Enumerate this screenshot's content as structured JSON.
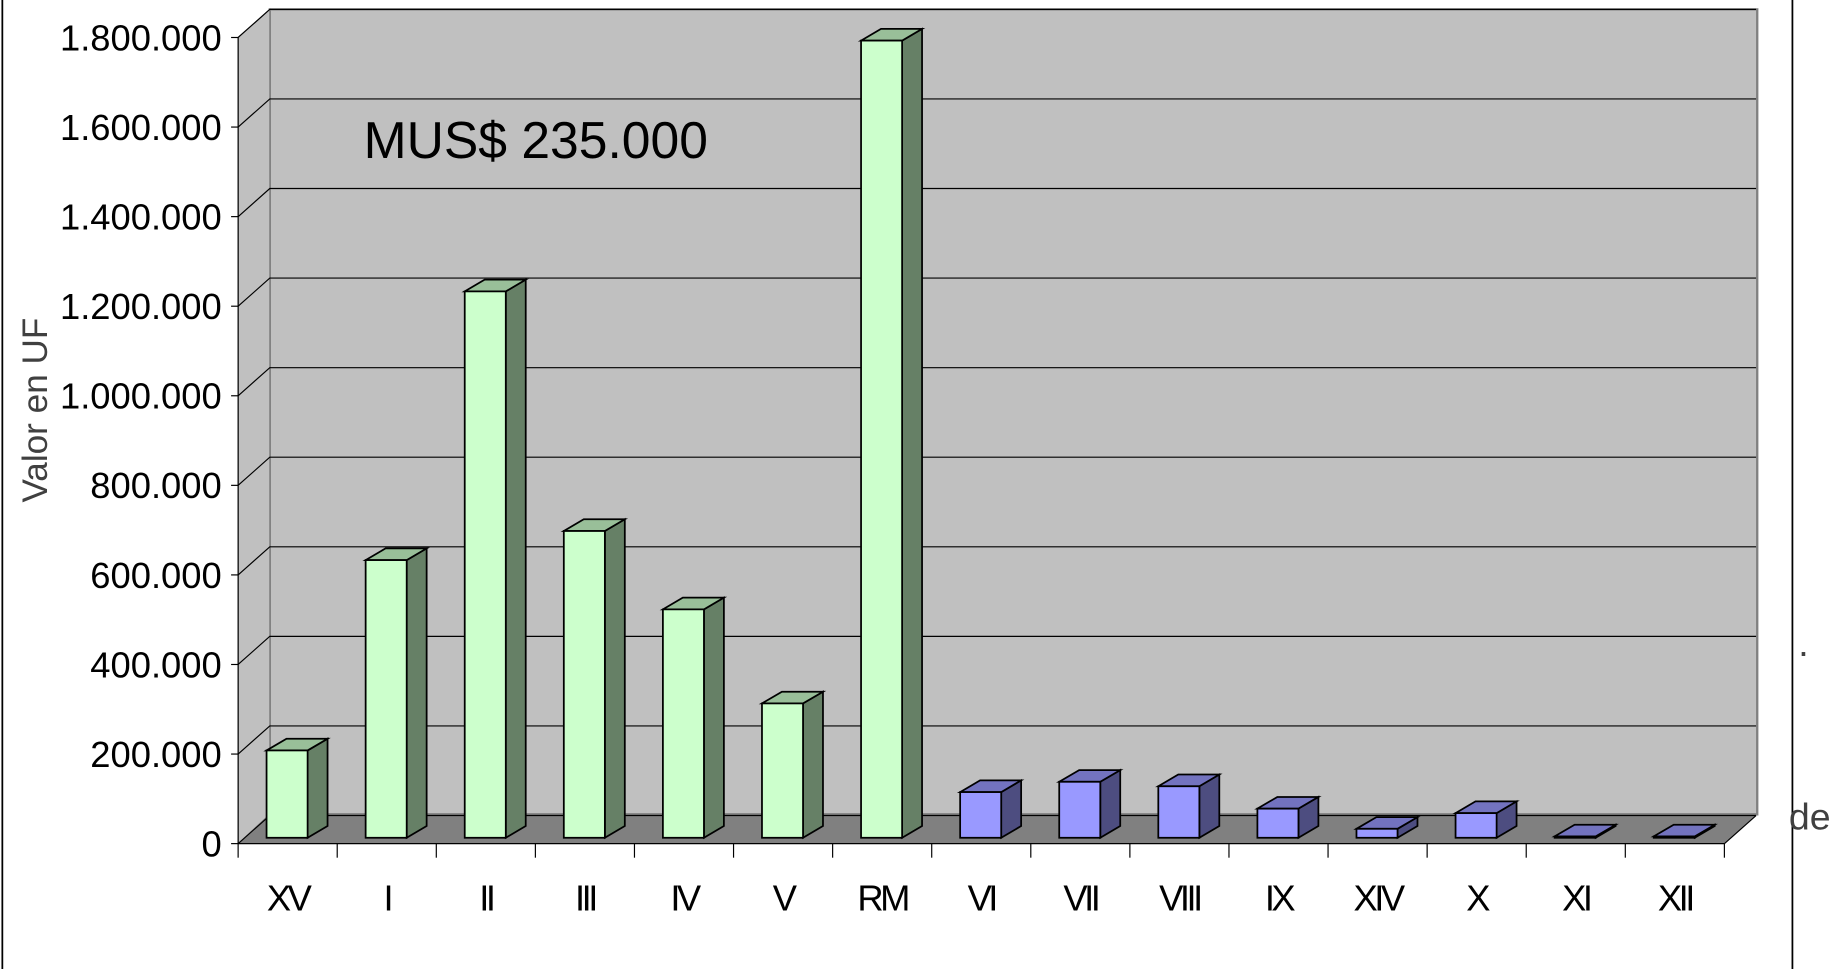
{
  "chart_data": {
    "type": "bar3d",
    "annotation": "MUS$ 235.000",
    "y_label": "Valor en UF",
    "categories": [
      "XV",
      "I",
      "II",
      "III",
      "IV",
      "V",
      "RM",
      "VI",
      "VII",
      "VIII",
      "IX",
      "XIV",
      "X",
      "XI",
      "XII"
    ],
    "values": [
      195000,
      620000,
      1220000,
      685000,
      510000,
      300000,
      1780000,
      102000,
      125000,
      115000,
      65000,
      20000,
      55000,
      3000,
      3000
    ],
    "colors": [
      "#ccffcc",
      "#ccffcc",
      "#ccffcc",
      "#ccffcc",
      "#ccffcc",
      "#ccffcc",
      "#ccffcc",
      "#9999ff",
      "#9999ff",
      "#9999ff",
      "#9999ff",
      "#9999ff",
      "#9999ff",
      "#9999ff",
      "#9999ff"
    ],
    "ylim": [
      0,
      1800000
    ],
    "yticks": [
      0,
      {
        "value": 200000,
        "label": "200.000"
      },
      {
        "value": 400000,
        "label": "400.000"
      },
      {
        "value": 600000,
        "label": "600.000"
      },
      {
        "value": 800000,
        "label": "800.000"
      },
      {
        "value": 1000000,
        "label": "1.000.000"
      },
      {
        "value": 1200000,
        "label": "1.200.000"
      },
      {
        "value": 1400000,
        "label": "1.400.000"
      },
      {
        "value": 1600000,
        "label": "1.600.000"
      },
      {
        "value": 1800000,
        "label": "1.800.000"
      }
    ],
    "grid": true,
    "side_text": [
      ".",
      "de"
    ]
  }
}
